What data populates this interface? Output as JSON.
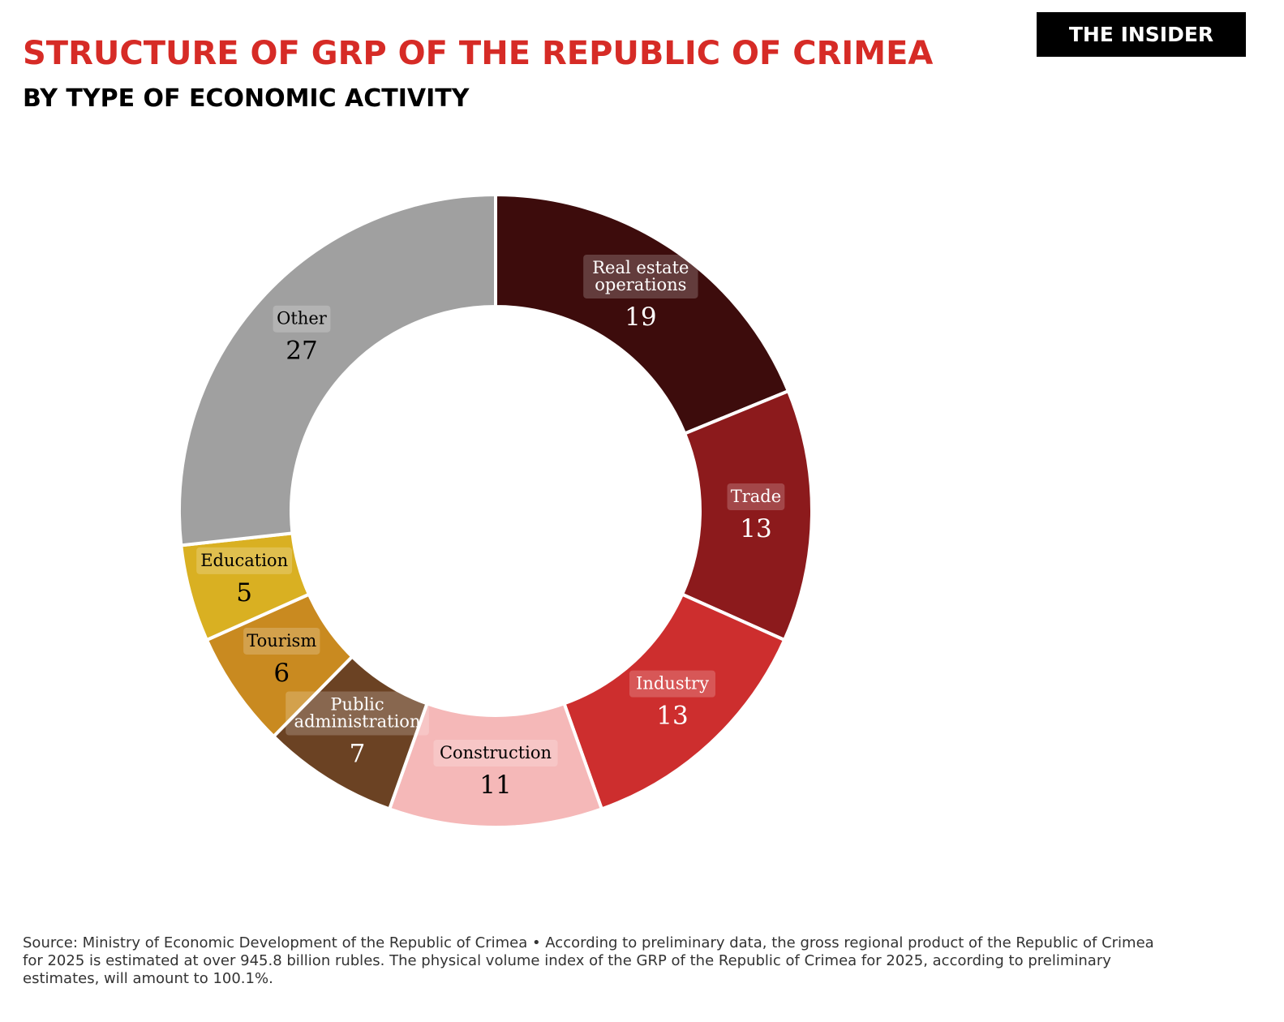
{
  "header": {
    "title": "STRUCTURE OF GRP OF THE REPUBLIC OF CRIMEA",
    "subtitle": "BY TYPE OF ECONOMIC ACTIVITY",
    "brand": "THE INSIDER"
  },
  "footer": {
    "source": "Source: Ministry of Economic Development of the Republic of Crimea  •  According to preliminary data, the gross regional product of the Republic of Crimea for 2025 is estimated at over 945.8 billion rubles. The physical volume index of the GRP of the Republic of Crimea for 2025, according to preliminary estimates, will amount to 100.1%."
  },
  "chart_data": {
    "type": "pie",
    "donut": true,
    "title": "STRUCTURE OF GRP OF THE REPUBLIC OF CRIMEA",
    "subtitle": "BY TYPE OF ECONOMIC ACTIVITY",
    "start": "top, clockwise",
    "slices": [
      {
        "label": "Real estate\noperations",
        "value": 19,
        "color": "#3d0c0c",
        "text_color": "#ffffff"
      },
      {
        "label": "Trade",
        "value": 13,
        "color": "#8c1a1c",
        "text_color": "#ffffff"
      },
      {
        "label": "Industry",
        "value": 13,
        "color": "#cd2e2e",
        "text_color": "#ffffff"
      },
      {
        "label": "Construction",
        "value": 11,
        "color": "#f5b8b8",
        "text_color": "#000000"
      },
      {
        "label": "Public\nadministration",
        "value": 7,
        "color": "#6b4223",
        "text_color": "#ffffff"
      },
      {
        "label": "Tourism",
        "value": 6,
        "color": "#c98a20",
        "text_color": "#000000"
      },
      {
        "label": "Education",
        "value": 5,
        "color": "#d9b022",
        "text_color": "#000000"
      },
      {
        "label": "Other",
        "value": 27,
        "color": "#a0a0a0",
        "text_color": "#000000"
      }
    ]
  }
}
